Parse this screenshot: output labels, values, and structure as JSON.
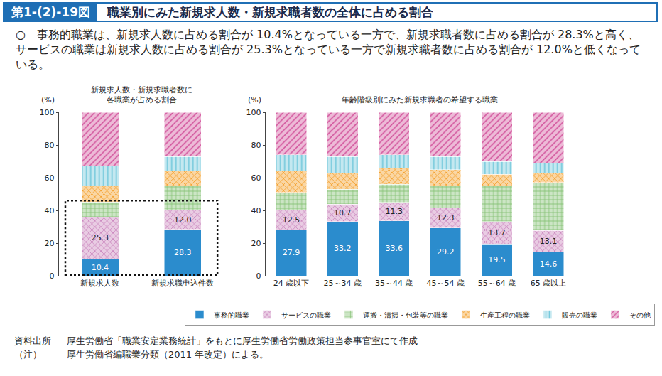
{
  "header": {
    "figure_number": "第1-(2)-19図",
    "title": "職業別にみた新規求人数・新規求職者数の全体に占める割合",
    "summary": "○　事務的職業は、新規求人数に占める割合が 10.4%となっている一方で、新規求職者数に占める割合が 28.3%と高く、サービスの職業は新規求人数に占める割合が 25.3%となっている一方で新規求職者数に占める割合が 12.0%と低くなっている。"
  },
  "chart_data": [
    {
      "type": "bar",
      "title": "新規求人数・新規求職者数に\n各職業が占める割合",
      "ylabel": "(%)",
      "stacked": true,
      "grid": false,
      "categories": [
        "新規求人数",
        "新規求職申込件数"
      ],
      "ylim": [
        0,
        100
      ],
      "yticks": [
        0,
        20,
        40,
        60,
        80,
        100
      ],
      "series": [
        {
          "name": "事務的職業",
          "color": "#2b8ccd",
          "marker": "solid",
          "data_labels": true,
          "values": [
            10.4,
            28.3
          ]
        },
        {
          "name": "サービスの職業",
          "color": "#c77fba",
          "marker": "crosshatch",
          "data_labels": true,
          "values": [
            25.3,
            12.0
          ],
          "value_labels": [
            "25.3",
            "12.0"
          ]
        },
        {
          "name": "運搬・清掃・包装等の職業",
          "color": "#7fbf6e",
          "marker": "grid",
          "values": [
            9.5,
            14.7
          ]
        },
        {
          "name": "生産工程の職業",
          "color": "#f39a1e",
          "marker": "zigzag",
          "values": [
            10,
            9
          ]
        },
        {
          "name": "販売の職業",
          "color": "#6cc6da",
          "marker": "vertical",
          "values": [
            12,
            9
          ]
        },
        {
          "name": "その他",
          "color": "#d2529b",
          "marker": "diagonal",
          "values": [
            32.8,
            27
          ]
        }
      ]
    },
    {
      "type": "bar",
      "title": "年齢階級別にみた新規求職者の希望する職業",
      "ylabel": "(%)",
      "stacked": true,
      "grid": false,
      "legend": "bottom",
      "categories": [
        "24 歳以下",
        "25～34 歳",
        "35～44 歳",
        "45～54 歳",
        "55～64 歳",
        "65 歳以上"
      ],
      "ylim": [
        0,
        100
      ],
      "yticks": [
        0,
        20,
        40,
        60,
        80,
        100
      ],
      "series": [
        {
          "name": "事務的職業",
          "color": "#2b8ccd",
          "marker": "solid",
          "data_labels": true,
          "values": [
            27.9,
            33.2,
            33.6,
            29.2,
            19.5,
            14.6
          ]
        },
        {
          "name": "サービスの職業",
          "color": "#c77fba",
          "marker": "crosshatch",
          "data_labels": true,
          "values": [
            12.5,
            10.7,
            11.3,
            12.3,
            13.7,
            13.1
          ]
        },
        {
          "name": "運搬・清掃・包装等の職業",
          "color": "#7fbf6e",
          "marker": "grid",
          "values": [
            10.6,
            9.1,
            11.1,
            13.5,
            21.8,
            29.3
          ]
        },
        {
          "name": "生産工程の職業",
          "color": "#f39a1e",
          "marker": "zigzag",
          "values": [
            13,
            10,
            10,
            10,
            7,
            6
          ]
        },
        {
          "name": "販売の職業",
          "color": "#6cc6da",
          "marker": "vertical",
          "values": [
            10,
            10,
            8,
            8,
            8,
            6
          ]
        },
        {
          "name": "その他",
          "color": "#d2529b",
          "marker": "diagonal",
          "values": [
            26,
            27,
            26,
            27,
            30,
            31
          ]
        }
      ]
    }
  ],
  "notes": [
    {
      "label": "資料出所",
      "text": "厚生労働省「職業安定業務統計」をもとに厚生労働省労働政策担当参事官室にて作成"
    },
    {
      "label": "（注）",
      "text": "厚生労働省編職業分類（2011 年改定）による。"
    }
  ]
}
